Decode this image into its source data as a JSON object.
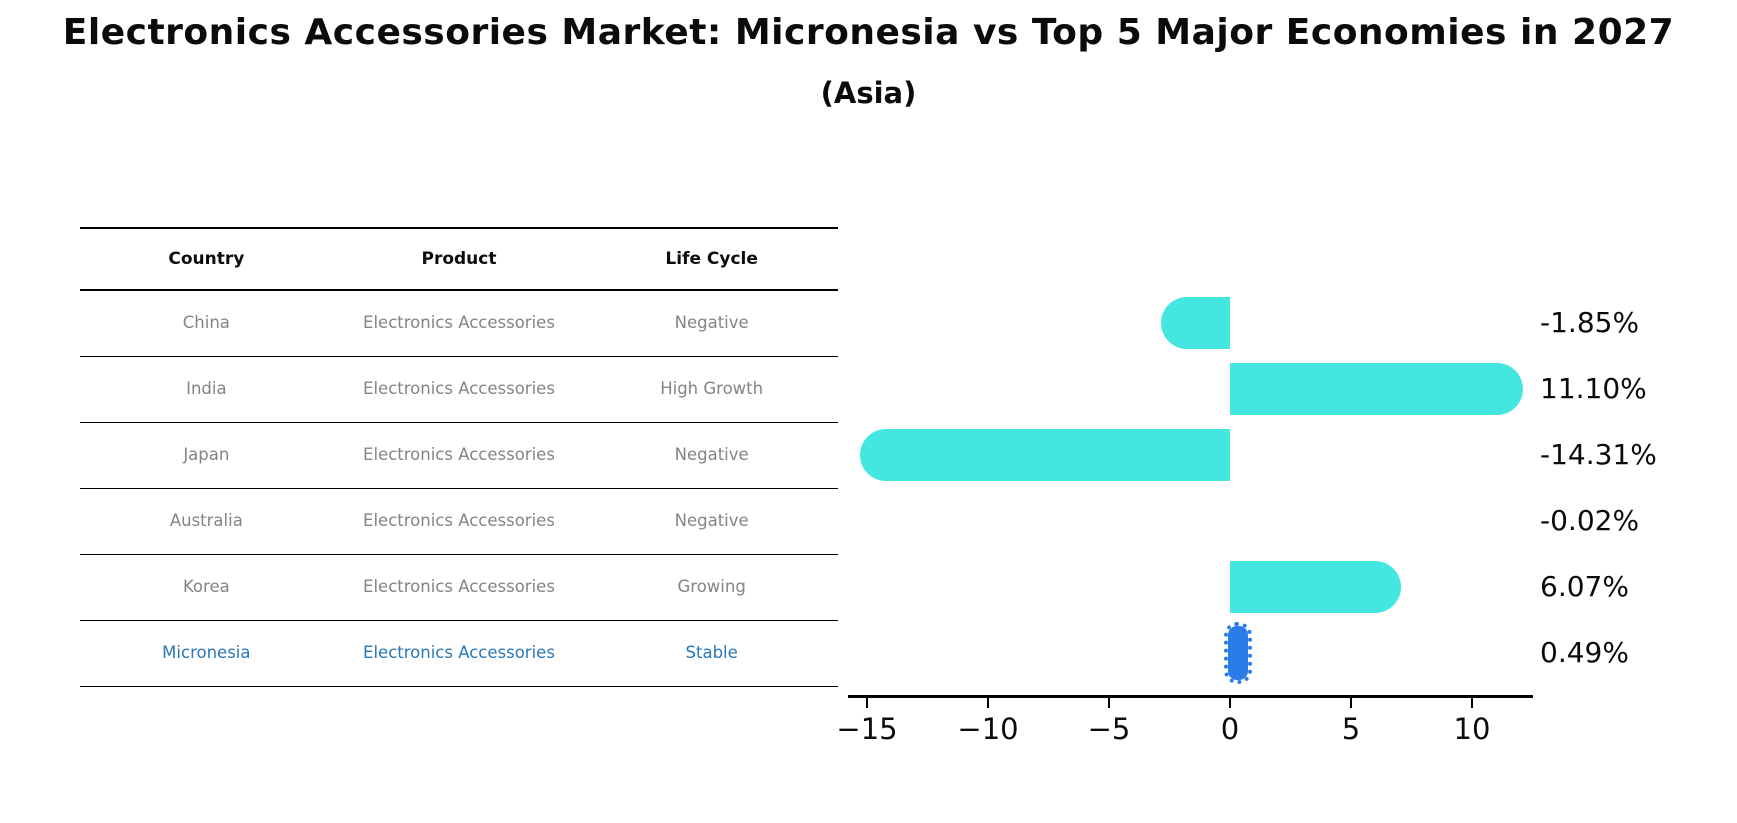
{
  "title": "Electronics Accessories Market: Micronesia vs Top 5 Major Economies in 2027",
  "subtitle": "(Asia)",
  "table": {
    "headers": [
      "Country",
      "Product",
      "Life Cycle"
    ],
    "rows": [
      {
        "country": "China",
        "product": "Electronics Accessories",
        "life_cycle": "Negative",
        "highlight": false
      },
      {
        "country": "India",
        "product": "Electronics Accessories",
        "life_cycle": "High Growth",
        "highlight": false
      },
      {
        "country": "Japan",
        "product": "Electronics Accessories",
        "life_cycle": "Negative",
        "highlight": false
      },
      {
        "country": "Australia",
        "product": "Electronics Accessories",
        "life_cycle": "Negative",
        "highlight": false
      },
      {
        "country": "Korea",
        "product": "Electronics Accessories",
        "life_cycle": "Growing",
        "highlight": false
      },
      {
        "country": "Micronesia",
        "product": "Electronics Accessories",
        "life_cycle": "Stable",
        "highlight": true
      }
    ]
  },
  "chart_data": {
    "type": "bar",
    "orientation": "horizontal",
    "categories": [
      "China",
      "India",
      "Japan",
      "Australia",
      "Korea",
      "Micronesia"
    ],
    "values": [
      -1.85,
      11.1,
      -14.31,
      -0.02,
      6.07,
      0.49
    ],
    "value_labels": [
      "-1.85%",
      "11.10%",
      "-14.31%",
      "-0.02%",
      "6.07%",
      "0.49%"
    ],
    "x_ticks": [
      -15,
      -10,
      -5,
      0,
      5,
      10
    ],
    "xlim": [
      -15.8,
      12.5
    ],
    "grid": false,
    "legend": "none",
    "bar_color": "#44E6E0",
    "highlight_color": "#2b7ce9",
    "highlight_index": 5,
    "axis_color": "#000000"
  },
  "colors": {
    "background": "#ffffff",
    "table_text": "#848484",
    "table_header_text": "#0d0d0d",
    "highlight_text": "#2878b9"
  }
}
